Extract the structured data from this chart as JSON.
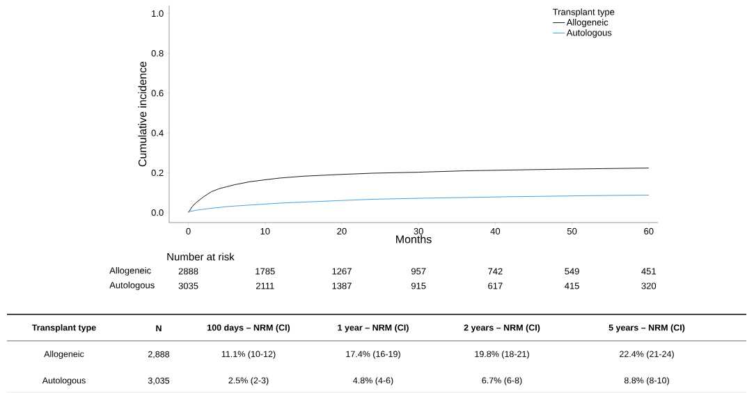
{
  "chart_data": {
    "type": "line",
    "xlabel": "Months",
    "ylabel": "Cumulative incidence",
    "legend_title": "Transplant type",
    "legend": "top right",
    "xlim": [
      -2.5,
      61.2
    ],
    "ylim": [
      -0.05,
      1.04
    ],
    "xticks": [
      0,
      10,
      20,
      30,
      40,
      50,
      60
    ],
    "yticks": [
      {
        "value": 0,
        "label": "0.0"
      },
      {
        "value": 0.2,
        "label": "0.2"
      },
      {
        "value": 0.4,
        "label": "0.4"
      },
      {
        "value": 0.6,
        "label": "0.6"
      },
      {
        "value": 0.8,
        "label": "0.8"
      },
      {
        "value": 1.0,
        "label": "1.0"
      }
    ],
    "x": [
      0,
      0.5,
      1,
      2,
      3,
      4,
      5,
      6,
      8,
      10,
      12,
      15,
      20,
      24,
      30,
      36,
      42,
      48,
      54,
      60
    ],
    "series": [
      {
        "name": "Allogeneic",
        "color": "#000000",
        "values": [
          0,
          0.03,
          0.05,
          0.08,
          0.105,
          0.12,
          0.13,
          0.14,
          0.155,
          0.165,
          0.174,
          0.183,
          0.192,
          0.198,
          0.203,
          0.21,
          0.214,
          0.218,
          0.221,
          0.224
        ]
      },
      {
        "name": "Autologous",
        "color": "#2f95de",
        "values": [
          0.005,
          0.008,
          0.012,
          0.017,
          0.022,
          0.026,
          0.03,
          0.033,
          0.038,
          0.043,
          0.048,
          0.053,
          0.061,
          0.067,
          0.072,
          0.076,
          0.08,
          0.083,
          0.086,
          0.088
        ]
      }
    ],
    "annotations": [
      "Number at risk",
      "Allogeneic",
      "Autologous",
      "2888",
      "1785",
      "1267",
      "957",
      "742",
      "549",
      "451",
      "3035",
      "2111",
      "1387",
      "915",
      "617",
      "415",
      "320",
      "Transplant type",
      "N",
      "100 days – NRM (CI)",
      "1 year – NRM (CI)",
      "2 years – NRM (CI)",
      "5 years – NRM (CI)",
      "Allogeneic",
      "2,888",
      "11.1% (10-12)",
      "17.4% (16-19)",
      "19.8% (18-21)",
      "22.4% (21-24)",
      "Autologous",
      "3,035",
      "2.5% (2-3)",
      "4.8% (4-6)",
      "6.7% (6-8)",
      "8.8% (8-10)"
    ]
  }
}
